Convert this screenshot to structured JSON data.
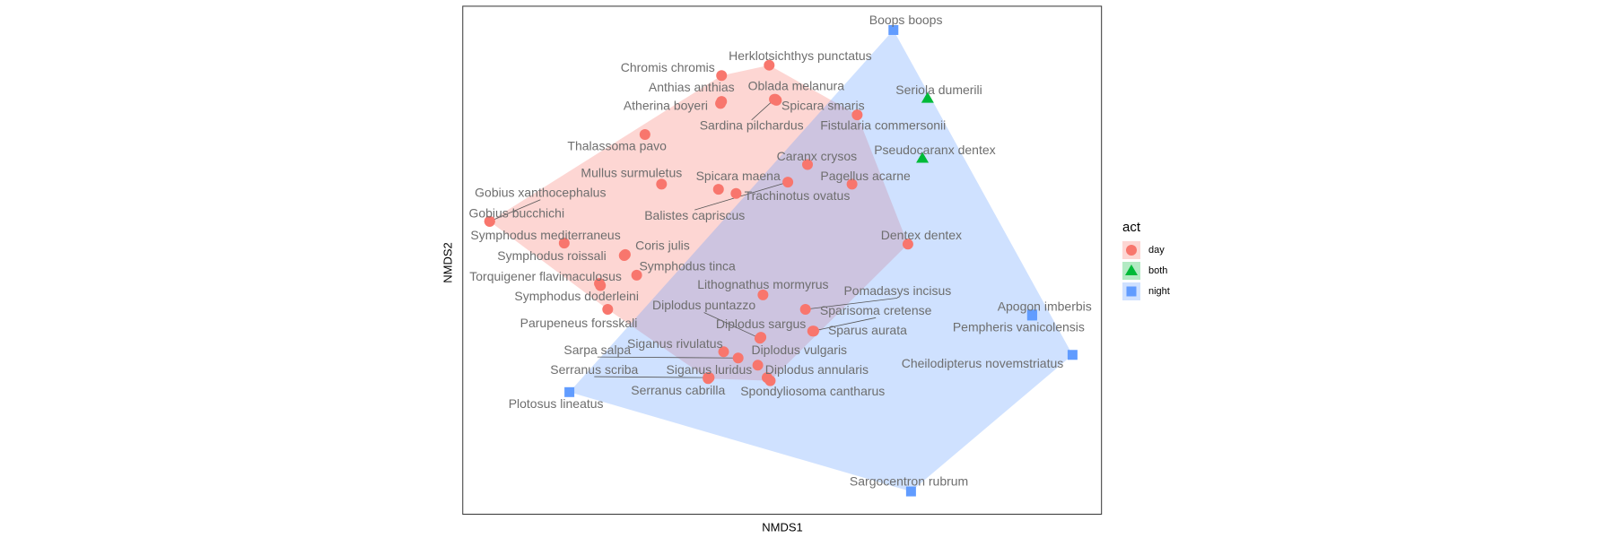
{
  "chart_data": {
    "type": "scatter",
    "x_label": "NMDS1",
    "y_label": "NMDS2",
    "legend_title": "act",
    "xlim": [
      0,
      617
    ],
    "ylim": [
      0,
      491
    ],
    "hull": true,
    "series": [
      {
        "name": "day",
        "color": "#F8766D",
        "shape": "circle",
        "labels": [
          "Herklotsichthys punctatus",
          "Chromis chromis",
          "Anthias anthias",
          "Atherina boyeri",
          "Oblada melanura",
          "Spicara smaris",
          "Sardina pilchardus",
          "Fistularia commersonii",
          "Thalassoma pavo",
          "Caranx crysos",
          "Mullus surmuletus",
          "Spicara maena",
          "Trachinotus ovatus",
          "Balistes capriscus",
          "Pagellus acarne",
          "Gobius xanthocephalus",
          "Gobius bucchichi",
          "Symphodus mediterraneus",
          "Coris julis",
          "Symphodus roissali",
          "Dentex dentex",
          "Symphodus tinca",
          "Torquigener flavimaculosus",
          "Symphodus doderleini",
          "Parupeneus forsskali",
          "Lithognathus mormyrus",
          "Pomadasys incisus",
          "Diplodus puntazzo",
          "Sparisoma cretense",
          "Sparus aurata",
          "Diplodus sargus",
          "Siganus rivulatus",
          "Sarpa salpa",
          "Diplodus vulgaris",
          "Diplodus annularis",
          "Siganus luridus",
          "Serranus scriba",
          "Serranus cabrilla",
          "Spondyliosoma cantharus"
        ],
        "x": [
          296,
          250,
          250,
          249,
          302,
          303,
          301,
          381,
          176,
          333,
          192,
          247,
          264,
          314,
          376,
          26,
          26,
          98,
          157,
          156,
          430,
          168,
          132,
          133,
          140,
          290,
          331,
          287,
          338,
          339,
          288,
          252,
          266,
          285,
          294,
          238,
          237,
          237,
          297
        ],
        "y": [
          434,
          424,
          399,
          397,
          401,
          400,
          401,
          386,
          367,
          338,
          319,
          314,
          310,
          321,
          319,
          283,
          283,
          262,
          251,
          250,
          261,
          231,
          223,
          221,
          198,
          212,
          198,
          170,
          177,
          177,
          171,
          157,
          151,
          144,
          132,
          132,
          132,
          131,
          129
        ]
      },
      {
        "name": "both",
        "color": "#00BA38",
        "shape": "triangle",
        "labels": [
          "Seriola dumerili",
          "Pseudocaranx dentex"
        ],
        "x": [
          449,
          444
        ],
        "y": [
          402,
          344
        ]
      },
      {
        "name": "night",
        "color": "#619CFF",
        "shape": "square",
        "labels": [
          "Boops boops",
          "Apogon imberbis",
          "Pempheris vanicolensis",
          "Cheilodipterus novemstriatus",
          "Plotosus lineatus",
          "Sargocentron rubrum"
        ],
        "x": [
          416,
          550,
          550,
          589,
          103,
          433
        ],
        "y": [
          468,
          193,
          192,
          154,
          118,
          22
        ]
      }
    ]
  }
}
